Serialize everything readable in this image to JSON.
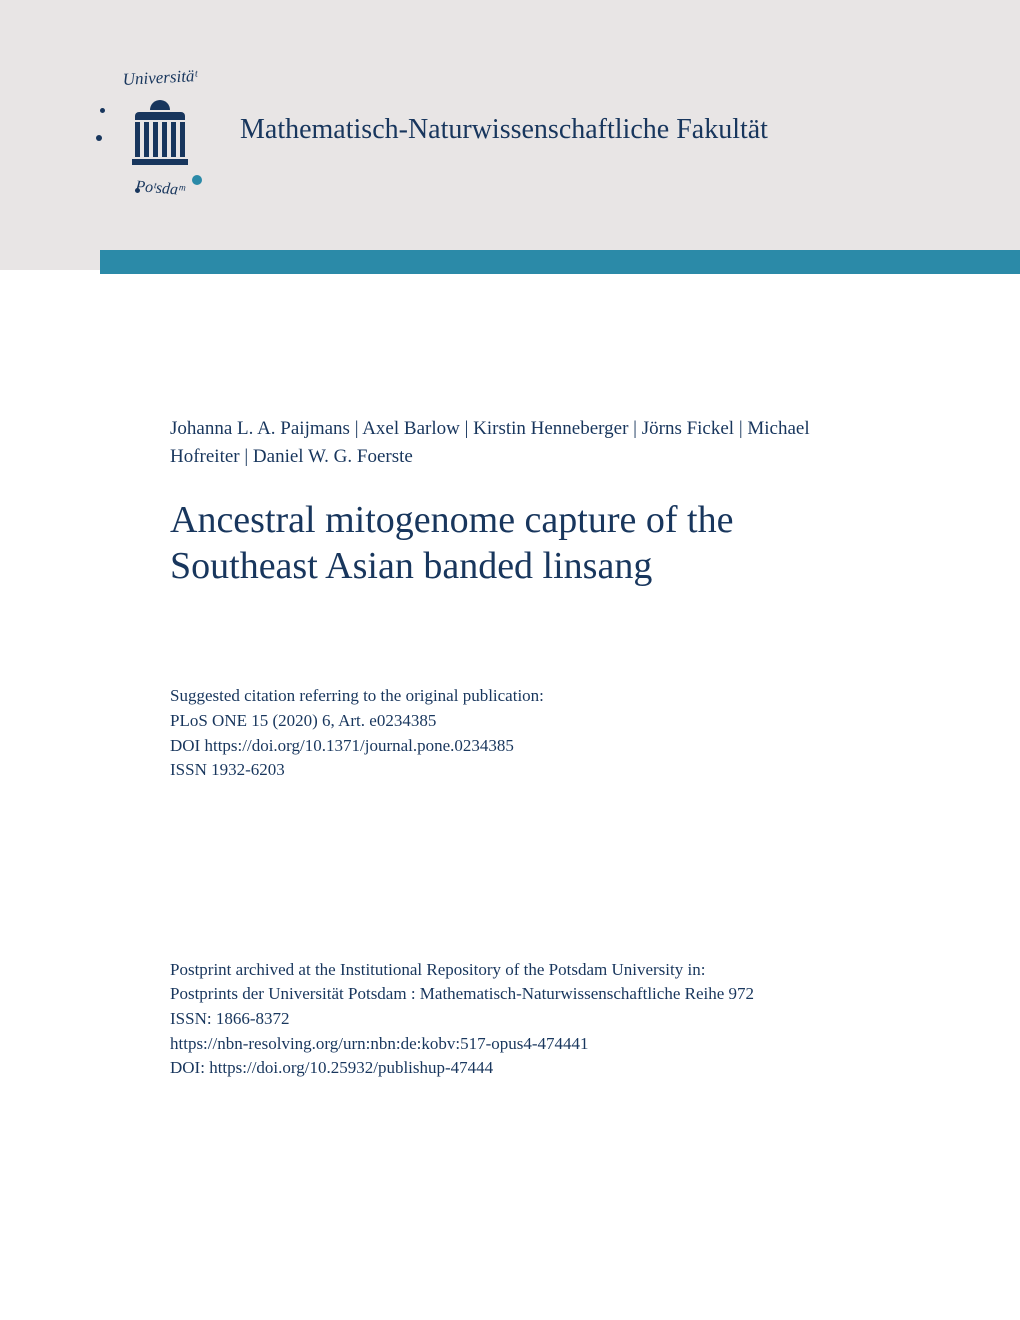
{
  "colors": {
    "dark_blue": "#18365d",
    "teal": "#2b8aa8",
    "header_bg": "#e8e5e5",
    "page_bg": "#ffffff"
  },
  "logo": {
    "top_text": "Universitäᵗ",
    "bottom_text": "Poᵗsdaᵐ"
  },
  "faculty_name": "Mathematisch-Naturwissenschaftliche Fakultät",
  "authors": "Johanna L. A. Paijmans | Axel Barlow | Kirstin Henneberger | Jörns Fickel | Michael Hofreiter | Daniel W. G. Foerste",
  "title": "Ancestral mitogenome capture of the Southeast Asian banded linsang",
  "citation": {
    "label": "Suggested citation referring to the original publication:",
    "journal": "PLoS ONE 15 (2020) 6, Art. e0234385",
    "doi": "DOI https://doi.org/10.1371/journal.pone.0234385",
    "issn": "ISSN 1932-6203"
  },
  "postprint": {
    "label": "Postprint archived at the Institutional Repository of the Potsdam University in:",
    "series": "Postprints der Universität Potsdam : Mathematisch-Naturwissenschaftliche Reihe 972",
    "issn": "ISSN: 1866-8372",
    "urn": "https://nbn-resolving.org/urn:nbn:de:kobv:517-opus4-474441",
    "doi": "DOI: https://doi.org/10.25932/publishup-47444"
  }
}
